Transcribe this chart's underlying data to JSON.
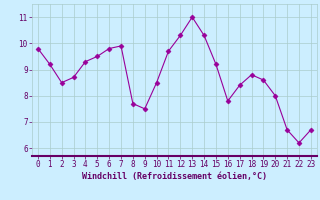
{
  "x": [
    0,
    1,
    2,
    3,
    4,
    5,
    6,
    7,
    8,
    9,
    10,
    11,
    12,
    13,
    14,
    15,
    16,
    17,
    18,
    19,
    20,
    21,
    22,
    23
  ],
  "y": [
    9.8,
    9.2,
    8.5,
    8.7,
    9.3,
    9.5,
    9.8,
    9.9,
    7.7,
    7.5,
    8.5,
    9.7,
    10.3,
    11.0,
    10.3,
    9.2,
    7.8,
    8.4,
    8.8,
    8.6,
    8.0,
    6.7,
    6.2,
    6.7
  ],
  "line_color": "#990099",
  "marker": "D",
  "marker_size": 2.5,
  "background_color": "#cceeff",
  "grid_color": "#aacccc",
  "xlabel": "Windchill (Refroidissement éolien,°C)",
  "xlabel_color": "#660066",
  "xlabel_fontsize": 6.0,
  "ylabel_ticks": [
    6,
    7,
    8,
    9,
    10,
    11
  ],
  "xlim": [
    -0.5,
    23.5
  ],
  "ylim": [
    5.7,
    11.5
  ],
  "tick_color": "#660066",
  "tick_fontsize": 5.5,
  "spine_color": "#660066",
  "spine_bottom_color": "#660066"
}
